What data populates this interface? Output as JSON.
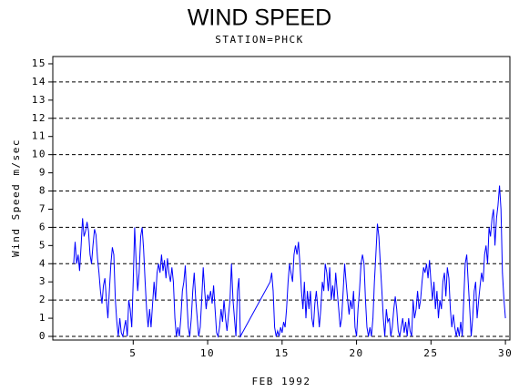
{
  "chart_data": {
    "type": "line",
    "title": "WIND SPEED",
    "subtitle": "STATION=PHCK",
    "x_label": "FEB 1992",
    "y_label": "Wind Speed m/sec",
    "xlim": [
      -0.4,
      30.3
    ],
    "ylim": [
      -0.2,
      15.4
    ],
    "xticks": [
      5,
      10,
      15,
      20,
      25,
      30
    ],
    "yticks": [
      0,
      1,
      2,
      3,
      4,
      5,
      6,
      7,
      8,
      9,
      10,
      11,
      12,
      13,
      14,
      15
    ],
    "ygrid": [
      0,
      2,
      4,
      6,
      8,
      10,
      12,
      14
    ],
    "series": [
      {
        "name": "Wind Speed",
        "color": "#0000ff",
        "x": [
          1.0,
          1.1,
          1.2,
          1.3,
          1.4,
          1.5,
          1.6,
          1.7,
          1.8,
          1.9,
          2.0,
          2.1,
          2.2,
          2.3,
          2.4,
          2.5,
          2.6,
          2.7,
          2.8,
          2.9,
          3.0,
          3.1,
          3.2,
          3.3,
          3.4,
          3.5,
          3.6,
          3.7,
          3.8,
          3.9,
          4.0,
          4.1,
          4.2,
          4.3,
          4.4,
          4.5,
          4.6,
          4.7,
          4.8,
          4.9,
          5.0,
          5.1,
          5.2,
          5.3,
          5.4,
          5.5,
          5.6,
          5.7,
          5.8,
          5.9,
          6.0,
          6.1,
          6.2,
          6.3,
          6.4,
          6.5,
          6.6,
          6.7,
          6.8,
          6.9,
          7.0,
          7.1,
          7.2,
          7.3,
          7.4,
          7.5,
          7.6,
          7.7,
          7.8,
          7.9,
          8.0,
          8.1,
          8.2,
          8.3,
          8.4,
          8.5,
          8.6,
          8.7,
          8.8,
          8.9,
          9.0,
          9.1,
          9.2,
          9.3,
          9.4,
          9.5,
          9.6,
          9.7,
          9.8,
          9.9,
          10.0,
          10.1,
          10.2,
          10.3,
          10.4,
          10.5,
          10.6,
          10.7,
          10.8,
          10.9,
          11.0,
          11.1,
          11.2,
          11.3,
          11.4,
          11.5,
          11.6,
          11.7,
          11.8,
          11.9,
          12.0,
          12.1,
          12.2,
          14.2,
          14.3,
          14.4,
          14.5,
          14.6,
          14.7,
          14.8,
          14.9,
          15.0,
          15.1,
          15.2,
          15.3,
          15.4,
          15.5,
          15.6,
          15.7,
          15.8,
          15.9,
          16.0,
          16.1,
          16.2,
          16.3,
          16.4,
          16.5,
          16.6,
          16.7,
          16.8,
          16.9,
          17.0,
          17.1,
          17.2,
          17.3,
          17.4,
          17.5,
          17.6,
          17.7,
          17.8,
          17.9,
          18.0,
          18.1,
          18.2,
          18.3,
          18.4,
          18.5,
          18.6,
          18.7,
          18.8,
          18.9,
          19.0,
          19.1,
          19.2,
          19.3,
          19.4,
          19.5,
          19.6,
          19.7,
          19.8,
          19.9,
          20.0,
          20.1,
          20.2,
          20.3,
          20.4,
          20.5,
          20.6,
          20.7,
          20.8,
          20.9,
          21.0,
          21.1,
          21.2,
          21.3,
          21.4,
          21.5,
          21.6,
          21.7,
          21.8,
          21.9,
          22.0,
          22.1,
          22.2,
          22.3,
          22.4,
          22.5,
          22.6,
          22.7,
          22.8,
          22.9,
          23.0,
          23.1,
          23.2,
          23.3,
          23.4,
          23.5,
          23.6,
          23.7,
          23.8,
          23.9,
          24.0,
          24.1,
          24.2,
          24.3,
          24.4,
          24.5,
          24.6,
          24.7,
          24.8,
          24.9,
          25.0,
          25.1,
          25.2,
          25.3,
          25.4,
          25.5,
          25.6,
          25.7,
          25.8,
          25.9,
          26.0,
          26.1,
          26.2,
          26.3,
          26.4,
          26.5,
          26.6,
          26.7,
          26.8,
          26.9,
          27.0,
          27.1,
          27.2,
          27.3,
          27.4,
          27.5,
          27.6,
          27.7,
          27.8,
          27.9,
          28.0,
          28.1,
          28.2,
          28.3,
          28.4,
          28.5,
          28.6,
          28.7,
          28.8,
          28.9,
          29.0,
          29.1,
          29.2,
          29.3,
          29.4,
          29.5,
          29.6,
          29.7,
          29.8,
          29.9,
          30.0
        ],
        "values": [
          4,
          5.2,
          4,
          4.5,
          3.6,
          5,
          6.5,
          5.5,
          5.8,
          6.3,
          5.8,
          4.5,
          4,
          5,
          5.9,
          5.6,
          4.3,
          3.5,
          2.5,
          1.8,
          2.8,
          3.2,
          2,
          1,
          2.5,
          4,
          4.9,
          4.5,
          2,
          0.8,
          0,
          1,
          0.2,
          0,
          0.5,
          0.9,
          0,
          2,
          1.5,
          0.5,
          3,
          6,
          4,
          2.5,
          3.5,
          5.5,
          6,
          4.8,
          3,
          1.5,
          0.5,
          1.5,
          0.5,
          1.8,
          3,
          2,
          3.5,
          4,
          3.5,
          4.5,
          3.6,
          4.2,
          3.2,
          4.3,
          3.5,
          3,
          3.8,
          3,
          1,
          0,
          0.5,
          0,
          1,
          2.5,
          3,
          3.9,
          2,
          0.5,
          0,
          1,
          2.5,
          3.5,
          2,
          1,
          0,
          0.5,
          2,
          3.8,
          2.5,
          1.5,
          2.3,
          2,
          2.5,
          1.8,
          2.8,
          1.5,
          0.2,
          0,
          0.5,
          1.5,
          0.8,
          2,
          1,
          0.3,
          1.2,
          2,
          4,
          2,
          1,
          0,
          2.5,
          3.2,
          0,
          3,
          3.5,
          2.5,
          0.5,
          0,
          0.3,
          0,
          0.5,
          0.2,
          0.8,
          0.5,
          1.5,
          3,
          4,
          3.5,
          3,
          4.5,
          5,
          4.5,
          5.2,
          4,
          2.5,
          1.5,
          3,
          1,
          2.5,
          1.5,
          2.5,
          1,
          0.5,
          1.8,
          2.5,
          1.5,
          0.5,
          1.5,
          3,
          2.5,
          4,
          3.5,
          2.5,
          3.8,
          2,
          2.8,
          2,
          3.5,
          2.5,
          1.5,
          0.5,
          1,
          2.5,
          4,
          3,
          2,
          1.2,
          2,
          1.5,
          2.5,
          0.5,
          0,
          1.5,
          2.5,
          4,
          4.5,
          4,
          2,
          0.5,
          0,
          0.5,
          0,
          1,
          3,
          4.5,
          6.2,
          5.5,
          4,
          2.5,
          1,
          0,
          1.5,
          0.8,
          1,
          0,
          0.5,
          1.5,
          2.2,
          1.5,
          0.3,
          0,
          0.5,
          1,
          0.2,
          0.8,
          0,
          1,
          0.3,
          0,
          2,
          1,
          1.5,
          2.5,
          1.5,
          2,
          3,
          3.8,
          3.5,
          4,
          3.2,
          4.2,
          3,
          2,
          3,
          1.5,
          2.5,
          1,
          2,
          1.5,
          3,
          3.5,
          2.2,
          3.8,
          3.2,
          1.5,
          0.5,
          1.2,
          0.5,
          0,
          0.5,
          0,
          0.8,
          0,
          2,
          4,
          4.5,
          3,
          1.5,
          0,
          1,
          2.5,
          3,
          1,
          2,
          2.8,
          3.5,
          3,
          4.5,
          5,
          4,
          6,
          5.5,
          6.5,
          7,
          5,
          6.5,
          7.2,
          8.3,
          7,
          3.5,
          2,
          1
        ]
      }
    ]
  }
}
